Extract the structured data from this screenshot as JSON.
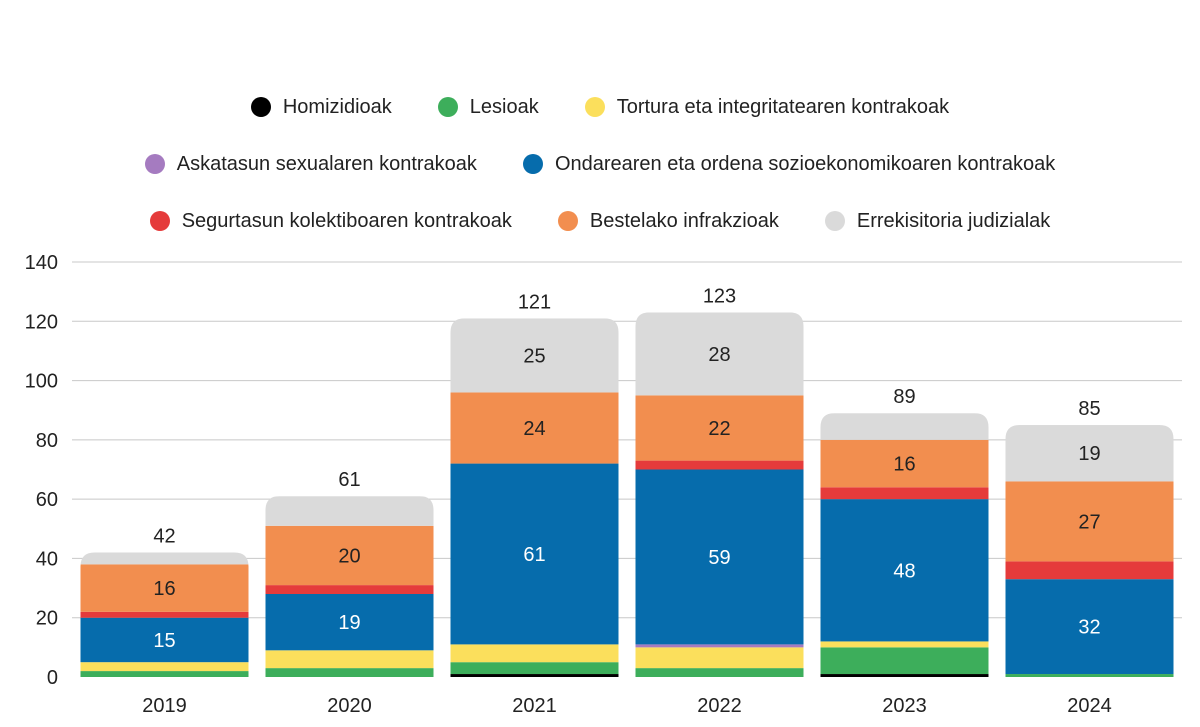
{
  "chart_data": {
    "type": "bar",
    "stacked": true,
    "categories": [
      "2019",
      "2020",
      "2021",
      "2022",
      "2023",
      "2024"
    ],
    "ylim": [
      0,
      140
    ],
    "yticks": [
      0,
      20,
      40,
      60,
      80,
      100,
      120,
      140
    ],
    "grid": true,
    "legend_position": "top",
    "series": [
      {
        "name": "Homizidioak",
        "color": "#000000",
        "values": [
          0,
          0,
          1,
          0,
          1,
          0
        ]
      },
      {
        "name": "Lesioak",
        "color": "#3dae5b",
        "values": [
          2,
          3,
          4,
          3,
          9,
          1
        ]
      },
      {
        "name": "Tortura eta integritatearen kontrakoak",
        "color": "#fbdf5c",
        "values": [
          3,
          6,
          6,
          7,
          2,
          0
        ]
      },
      {
        "name": "Askatasun sexualaren kontrakoak",
        "color": "#a57bc0",
        "values": [
          0,
          0,
          0,
          1,
          0,
          0
        ]
      },
      {
        "name": "Ondarearen eta ordena sozioekonomikoaren kontrakoak",
        "color": "#066cac",
        "values": [
          15,
          19,
          61,
          59,
          48,
          32
        ]
      },
      {
        "name": "Segurtasun kolektiboaren kontrakoak",
        "color": "#e53b3b",
        "values": [
          2,
          3,
          0,
          3,
          4,
          6
        ]
      },
      {
        "name": "Bestelako infrakzioak",
        "color": "#f28e4f",
        "values": [
          16,
          20,
          24,
          22,
          16,
          27
        ]
      },
      {
        "name": "Errekisitoria judizialak",
        "color": "#dadada",
        "values": [
          4,
          10,
          25,
          28,
          9,
          19
        ]
      }
    ],
    "totals": [
      "42",
      "61",
      "121",
      "123",
      "89",
      "85"
    ],
    "data_labels": [
      {
        "category": "2019",
        "series": "Ondarearen eta ordena sozioekonomikoaren kontrakoak",
        "text": "15"
      },
      {
        "category": "2019",
        "series": "Bestelako infrakzioak",
        "text": "16"
      },
      {
        "category": "2020",
        "series": "Ondarearen eta ordena sozioekonomikoaren kontrakoak",
        "text": "19"
      },
      {
        "category": "2020",
        "series": "Bestelako infrakzioak",
        "text": "20"
      },
      {
        "category": "2021",
        "series": "Ondarearen eta ordena sozioekonomikoaren kontrakoak",
        "text": "61"
      },
      {
        "category": "2021",
        "series": "Bestelako infrakzioak",
        "text": "24"
      },
      {
        "category": "2021",
        "series": "Errekisitoria judizialak",
        "text": "25"
      },
      {
        "category": "2022",
        "series": "Ondarearen eta ordena sozioekonomikoaren kontrakoak",
        "text": "59"
      },
      {
        "category": "2022",
        "series": "Bestelako infrakzioak",
        "text": "22"
      },
      {
        "category": "2022",
        "series": "Errekisitoria judizialak",
        "text": "28"
      },
      {
        "category": "2023",
        "series": "Ondarearen eta ordena sozioekonomikoaren kontrakoak",
        "text": "48"
      },
      {
        "category": "2023",
        "series": "Bestelako infrakzioak",
        "text": "16"
      },
      {
        "category": "2024",
        "series": "Ondarearen eta ordena sozioekonomikoaren kontrakoak",
        "text": "32"
      },
      {
        "category": "2024",
        "series": "Bestelako infrakzioak",
        "text": "27"
      },
      {
        "category": "2024",
        "series": "Errekisitoria judizialak",
        "text": "19"
      }
    ]
  }
}
